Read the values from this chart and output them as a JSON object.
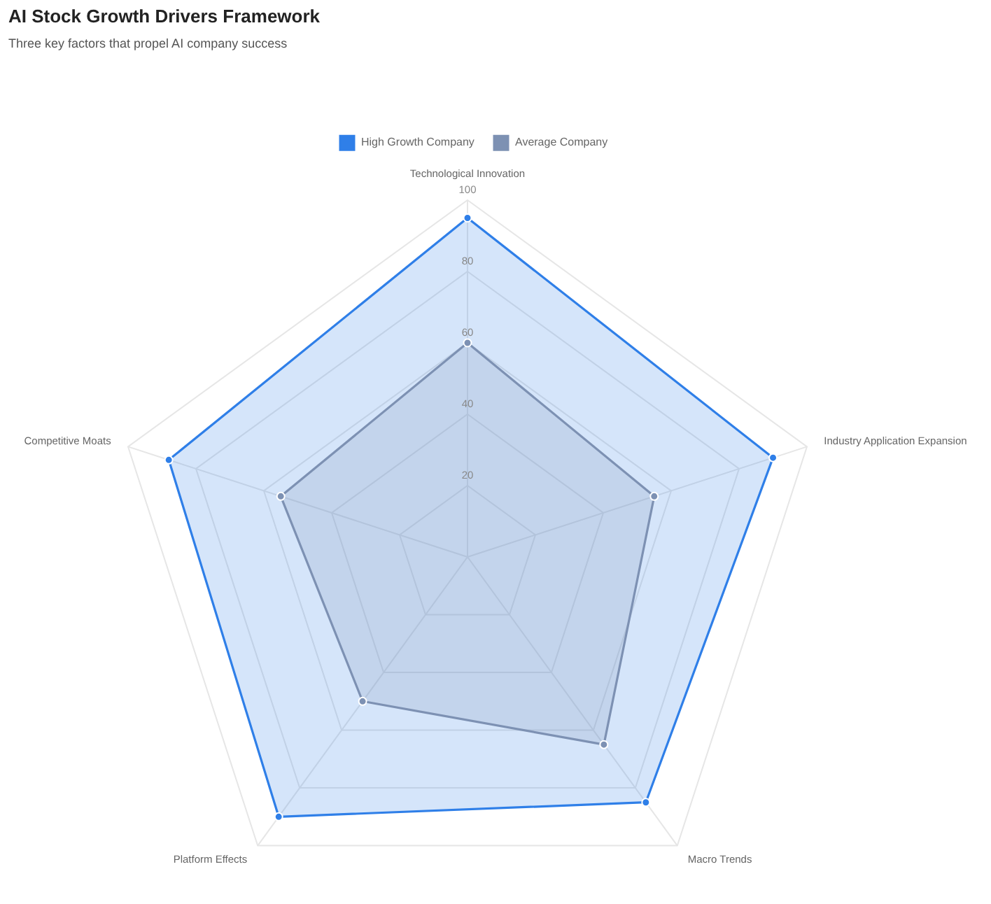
{
  "chart_data": {
    "type": "radar",
    "title": "AI Stock Growth Drivers Framework",
    "subtitle": "Three key factors that propel AI company success",
    "categories": [
      "Technological Innovation",
      "Industry Application Expansion",
      "Macro Trends",
      "Platform Effects",
      "Competitive Moats"
    ],
    "series": [
      {
        "name": "High Growth Company",
        "color": "#2f7fe8",
        "values": [
          95,
          90,
          85,
          90,
          88
        ]
      },
      {
        "name": "Average Company",
        "color": "#7d91b3",
        "values": [
          60,
          55,
          65,
          50,
          55
        ]
      }
    ],
    "ylim": [
      0,
      100
    ],
    "yticks": [
      20,
      40,
      60,
      80,
      100
    ],
    "grid": true,
    "legend": "top",
    "marker": "circle"
  }
}
